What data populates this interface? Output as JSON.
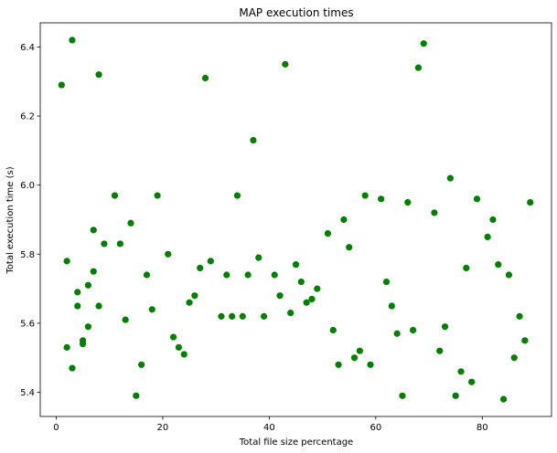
{
  "chart_data": {
    "type": "scatter",
    "title": "MAP execution times",
    "xlabel": "Total file size percentage",
    "ylabel": "Total execution time (s)",
    "xlim": [
      -3,
      93
    ],
    "ylim": [
      5.33,
      6.47
    ],
    "xticks": [
      0,
      20,
      40,
      60,
      80
    ],
    "yticks": [
      5.4,
      5.6,
      5.8,
      6.0,
      6.2,
      6.4
    ],
    "xtick_labels": [
      "0",
      "20",
      "40",
      "60",
      "80"
    ],
    "ytick_labels": [
      "5.4",
      "5.6",
      "5.8",
      "6.0",
      "6.2",
      "6.4"
    ],
    "grid": false,
    "marker_color": "#008000",
    "series": [
      {
        "x": [
          1,
          2,
          2,
          3,
          3,
          4,
          4,
          5,
          5,
          6,
          6,
          7,
          7,
          8,
          8,
          9,
          11,
          12,
          13,
          14,
          15,
          16,
          17,
          18,
          19,
          21,
          22,
          23,
          24,
          25,
          26,
          27,
          28,
          29,
          31,
          32,
          33,
          34,
          35,
          36,
          37,
          38,
          39,
          41,
          42,
          43,
          44,
          45,
          46,
          47,
          48,
          49,
          51,
          52,
          53,
          54,
          55,
          56,
          57,
          58,
          59,
          61,
          62,
          63,
          64,
          65,
          66,
          67,
          68,
          69,
          71,
          72,
          73,
          74,
          75,
          76,
          77,
          78,
          79,
          81,
          82,
          83,
          84,
          85,
          86,
          87,
          88,
          89
        ],
        "y": [
          6.29,
          5.53,
          5.78,
          6.42,
          5.47,
          5.65,
          5.69,
          5.54,
          5.55,
          5.59,
          5.71,
          5.75,
          5.87,
          6.32,
          5.65,
          5.83,
          5.97,
          5.83,
          5.61,
          5.89,
          5.39,
          5.48,
          5.74,
          5.64,
          5.97,
          5.8,
          5.56,
          5.53,
          5.51,
          5.66,
          5.68,
          5.76,
          6.31,
          5.78,
          5.62,
          5.74,
          5.62,
          5.97,
          5.62,
          5.74,
          6.13,
          5.79,
          5.62,
          5.74,
          5.68,
          6.35,
          5.63,
          5.77,
          5.72,
          5.66,
          5.67,
          5.7,
          5.86,
          5.58,
          5.48,
          5.9,
          5.82,
          5.5,
          5.52,
          5.97,
          5.48,
          5.96,
          5.72,
          5.65,
          5.57,
          5.39,
          5.95,
          5.58,
          6.34,
          6.41,
          5.92,
          5.52,
          5.59,
          6.02,
          5.39,
          5.46,
          5.76,
          5.43,
          5.96,
          5.85,
          5.9,
          5.77,
          5.38,
          5.74,
          5.5,
          5.62,
          5.55,
          5.95
        ]
      }
    ]
  }
}
